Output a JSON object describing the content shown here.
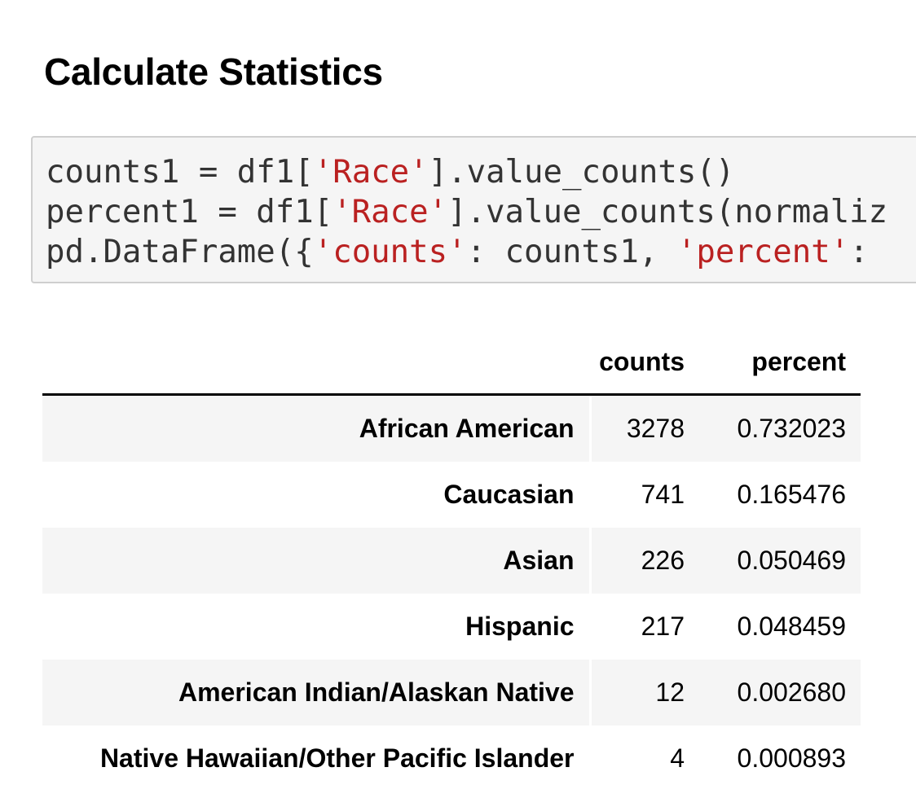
{
  "heading": "Calculate Statistics",
  "code": {
    "line1": {
      "a": "counts1 = df1[",
      "s1": "'Race'",
      "b": "].value_counts()"
    },
    "line2": {
      "a": "percent1 = df1[",
      "s1": "'Race'",
      "b": "].value_counts(normaliz"
    },
    "line3": {
      "a": "pd.DataFrame({",
      "s1": "'counts'",
      "b": ": counts1, ",
      "s2": "'percent'",
      "c": ":"
    }
  },
  "table": {
    "columns": [
      "",
      "counts",
      "percent"
    ],
    "rows": [
      {
        "label": "African American",
        "counts": "3278",
        "percent": "0.732023"
      },
      {
        "label": "Caucasian",
        "counts": "741",
        "percent": "0.165476"
      },
      {
        "label": "Asian",
        "counts": "226",
        "percent": "0.050469"
      },
      {
        "label": "Hispanic",
        "counts": "217",
        "percent": "0.048459"
      },
      {
        "label": "American Indian/Alaskan Native",
        "counts": "12",
        "percent": "0.002680"
      },
      {
        "label": "Native Hawaiian/Other Pacific Islander",
        "counts": "4",
        "percent": "0.000893"
      }
    ]
  }
}
